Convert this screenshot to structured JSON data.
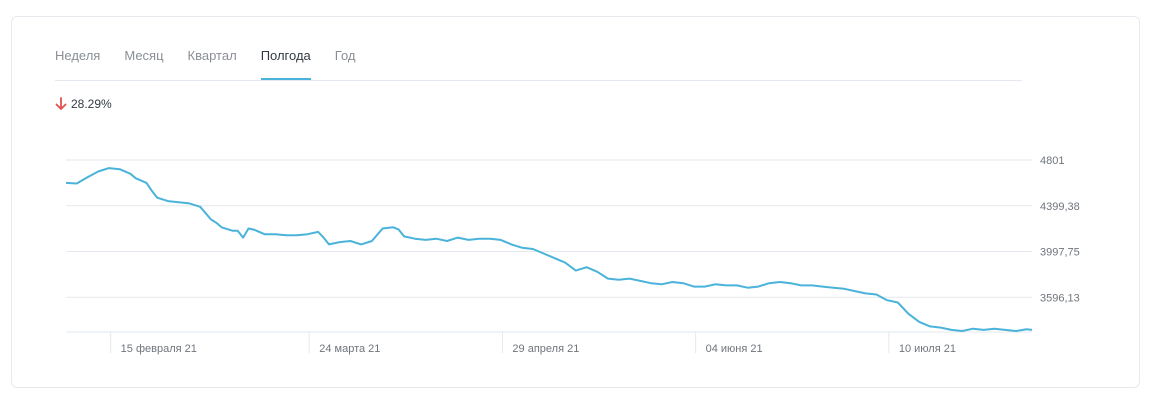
{
  "tabs": [
    {
      "label": "Неделя"
    },
    {
      "label": "Месяц"
    },
    {
      "label": "Квартал"
    },
    {
      "label": "Полгода",
      "active": true
    },
    {
      "label": "Год"
    }
  ],
  "change": {
    "text": "28.29%",
    "direction": "down",
    "color": "#e0524d"
  },
  "colors": {
    "line": "#4ab3d9",
    "grid": "#e3e9ee"
  },
  "chart_data": {
    "type": "line",
    "grid": true,
    "ylim": [
      3300,
      4801
    ],
    "y_ticks": [
      {
        "value": 4801,
        "label": "4801"
      },
      {
        "value": 4399.38,
        "label": "4399,38"
      },
      {
        "value": 3997.75,
        "label": "3997,75"
      },
      {
        "value": 3596.13,
        "label": "3596,13"
      }
    ],
    "x_ticks": [
      {
        "value": 15,
        "label": "15 февраля 21"
      },
      {
        "value": 52,
        "label": "24 марта 21"
      },
      {
        "value": 88,
        "label": "29 апреля 21"
      },
      {
        "value": 124,
        "label": "04 июня 21"
      },
      {
        "value": 160,
        "label": "10 июля 21"
      }
    ],
    "xlim": [
      5,
      185
    ],
    "series": [
      {
        "x": [
          5,
          7,
          9,
          11,
          13,
          15,
          17,
          18,
          19,
          20,
          21,
          22,
          24,
          26,
          28,
          30,
          32,
          33,
          34,
          36,
          37,
          38,
          39,
          40,
          42,
          44,
          46,
          48,
          50,
          52,
          53,
          54,
          56,
          58,
          60,
          62,
          64,
          66,
          67,
          68,
          70,
          72,
          74,
          76,
          78,
          80,
          82,
          84,
          86,
          88,
          90,
          92,
          94,
          96,
          98,
          100,
          102,
          104,
          106,
          108,
          110,
          112,
          114,
          116,
          118,
          120,
          122,
          124,
          126,
          128,
          130,
          132,
          134,
          136,
          138,
          140,
          142,
          144,
          146,
          148,
          150,
          152,
          154,
          156,
          158,
          160,
          162,
          164,
          166,
          168,
          170,
          172,
          174,
          176,
          178,
          180,
          182,
          184,
          185
        ],
        "values": [
          4600,
          4595,
          4650,
          4700,
          4730,
          4720,
          4680,
          4640,
          4620,
          4600,
          4530,
          4470,
          4440,
          4430,
          4420,
          4390,
          4280,
          4250,
          4210,
          4180,
          4180,
          4120,
          4200,
          4190,
          4150,
          4150,
          4140,
          4140,
          4150,
          4170,
          4120,
          4060,
          4080,
          4090,
          4060,
          4090,
          4200,
          4210,
          4190,
          4130,
          4110,
          4100,
          4110,
          4090,
          4120,
          4100,
          4110,
          4110,
          4100,
          4060,
          4030,
          4020,
          3980,
          3940,
          3900,
          3830,
          3860,
          3820,
          3760,
          3750,
          3760,
          3740,
          3720,
          3710,
          3730,
          3720,
          3690,
          3690,
          3710,
          3700,
          3700,
          3680,
          3690,
          3720,
          3730,
          3720,
          3700,
          3700,
          3690,
          3680,
          3670,
          3650,
          3630,
          3620,
          3570,
          3550,
          3450,
          3380,
          3340,
          3330,
          3310,
          3300,
          3320,
          3310,
          3320,
          3310,
          3300,
          3315,
          3310
        ]
      }
    ]
  }
}
